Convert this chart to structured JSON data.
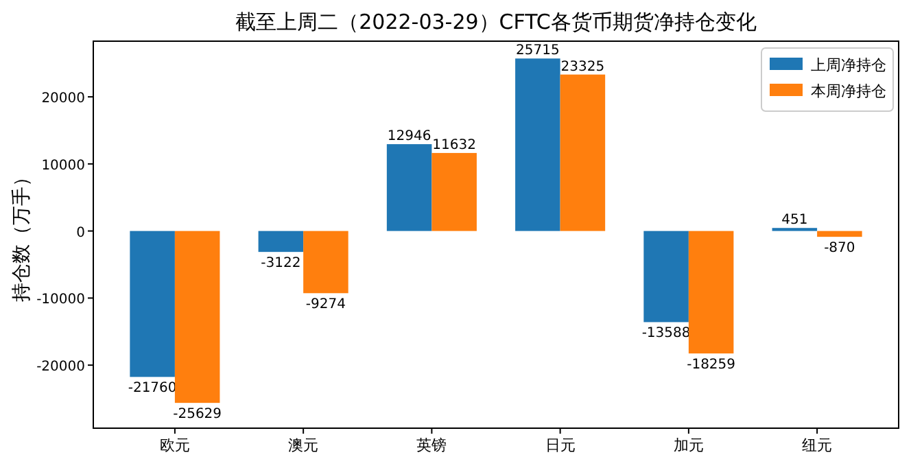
{
  "chart_data": {
    "type": "bar",
    "title": "截至上周二（2022-03-29）CFTC各货币期货净持仓变化",
    "ylabel": "持仓数（万手）",
    "categories": [
      "欧元",
      "澳元",
      "英镑",
      "日元",
      "加元",
      "纽元"
    ],
    "series": [
      {
        "name": "上周净持仓",
        "color": "#1f77b4",
        "values": [
          -21760,
          -3122,
          12946,
          25715,
          -13588,
          451
        ]
      },
      {
        "name": "本周净持仓",
        "color": "#ff7f0e",
        "values": [
          -25629,
          -9274,
          11632,
          23325,
          -18259,
          -870
        ]
      }
    ],
    "ylim": [
      -29400,
      28300
    ],
    "yticks": [
      -20000,
      -10000,
      0,
      10000,
      20000
    ],
    "data_labels": true,
    "legend": "top right"
  }
}
